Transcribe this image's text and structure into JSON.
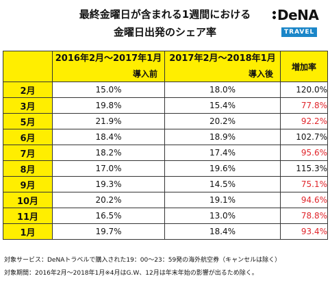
{
  "title_line1": "最終金曜日が含まれる1週間における",
  "title_line2": "金曜日出発のシェア率",
  "logo": {
    "main": "DeNA",
    "badge": "TRAVEL",
    "accent_color": "#1b86c8"
  },
  "table": {
    "period_before": "2016年2月〜2017年1月",
    "label_before": "導入前",
    "period_after": "2017年2月〜2018年1月",
    "label_after": "導入後",
    "rate_header": "増加率",
    "rows": [
      {
        "month": "2月",
        "before": "15.0%",
        "after": "18.0%",
        "rate": "120.0%",
        "trend": "up"
      },
      {
        "month": "3月",
        "before": "19.8%",
        "after": "15.4%",
        "rate": "77.8%",
        "trend": "down"
      },
      {
        "month": "5月",
        "before": "21.9%",
        "after": "20.2%",
        "rate": "92.2%",
        "trend": "down"
      },
      {
        "month": "6月",
        "before": "18.4%",
        "after": "18.9%",
        "rate": "102.7%",
        "trend": "up"
      },
      {
        "month": "7月",
        "before": "18.2%",
        "after": "17.4%",
        "rate": "95.6%",
        "trend": "down"
      },
      {
        "month": "8月",
        "before": "17.0%",
        "after": "19.6%",
        "rate": "115.3%",
        "trend": "up"
      },
      {
        "month": "9月",
        "before": "19.3%",
        "after": "14.5%",
        "rate": "75.1%",
        "trend": "down"
      },
      {
        "month": "10月",
        "before": "20.2%",
        "after": "19.1%",
        "rate": "94.6%",
        "trend": "down"
      },
      {
        "month": "11月",
        "before": "16.5%",
        "after": "13.0%",
        "rate": "78.8%",
        "trend": "down"
      },
      {
        "month": "1月",
        "before": "19.7%",
        "after": "18.4%",
        "rate": "93.4%",
        "trend": "down"
      }
    ]
  },
  "notes": [
    "対象サービス：DeNAトラベルで購入された19：00〜23：59発の海外航空券（キャンセルは除く）",
    "対象期間：2016年2月〜2018年1月※4月はG.W、12月は年末年始の影響が出るため除く。"
  ],
  "colors": {
    "header_yellow": "#ffee00",
    "decrease_red": "#e0252b"
  }
}
